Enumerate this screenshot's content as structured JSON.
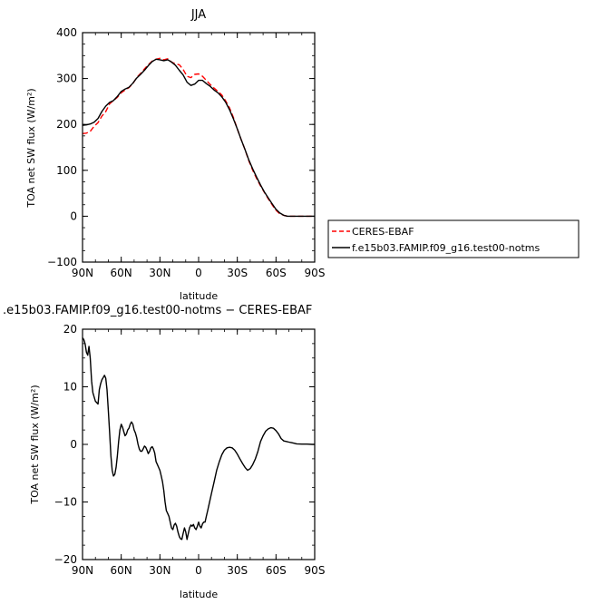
{
  "chart_data": [
    {
      "type": "line",
      "title": "JJA",
      "xlabel": "latitude",
      "ylabel": "TOA net SW flux (W/m²)",
      "x_ticks": [
        90,
        60,
        30,
        0,
        -30,
        -60,
        -90
      ],
      "x_tick_labels": [
        "90N",
        "60N",
        "30N",
        "0",
        "30S",
        "60S",
        "90S"
      ],
      "xlim": [
        90,
        -90
      ],
      "y_ticks": [
        -100,
        0,
        100,
        200,
        300,
        400
      ],
      "y_tick_labels": [
        "−100",
        "0",
        "100",
        "200",
        "300",
        "400"
      ],
      "ylim": [
        -100,
        400
      ],
      "legend_placement": "outside-right",
      "series": [
        {
          "name": "CERES-EBAF",
          "color": "#ff0000",
          "dash": "dashed",
          "x": [
            90,
            87,
            84,
            81,
            78,
            75,
            72,
            69,
            66,
            63,
            60,
            57,
            54,
            51,
            48,
            45,
            42,
            39,
            36,
            33,
            30,
            27,
            24,
            21,
            18,
            15,
            12,
            9,
            6,
            3,
            0,
            -3,
            -6,
            -9,
            -12,
            -15,
            -18,
            -21,
            -24,
            -27,
            -30,
            -33,
            -36,
            -39,
            -42,
            -45,
            -48,
            -51,
            -54,
            -57,
            -60,
            -63,
            -66,
            -69,
            -72,
            -75,
            -78,
            -81,
            -84,
            -87,
            -90
          ],
          "y": [
            180,
            181,
            185,
            196,
            204,
            218,
            228,
            245,
            252,
            259,
            269,
            275,
            280,
            289,
            302,
            311,
            321,
            330,
            338,
            342,
            344,
            341,
            343,
            336,
            332,
            330,
            320,
            305,
            302,
            309,
            310,
            305,
            296,
            287,
            279,
            272,
            264,
            251,
            236,
            215,
            190,
            167,
            145,
            120,
            100,
            82,
            66,
            52,
            38,
            25,
            13,
            5,
            2,
            0,
            0,
            0,
            0,
            0,
            0,
            0,
            0
          ]
        },
        {
          "name": "f.e15b03.FAMIP.f09_g16.test00-notms",
          "color": "#000000",
          "dash": "solid",
          "x": [
            90,
            87,
            84,
            81,
            78,
            75,
            72,
            69,
            66,
            63,
            60,
            57,
            54,
            51,
            48,
            45,
            42,
            39,
            36,
            33,
            30,
            27,
            24,
            21,
            18,
            15,
            12,
            9,
            6,
            3,
            0,
            -3,
            -6,
            -9,
            -12,
            -15,
            -18,
            -21,
            -24,
            -27,
            -30,
            -33,
            -36,
            -39,
            -42,
            -45,
            -48,
            -51,
            -54,
            -57,
            -60,
            -63,
            -66,
            -69,
            -72,
            -75,
            -78,
            -81,
            -84,
            -87,
            -90
          ],
          "y": [
            198,
            199,
            201,
            205,
            213,
            228,
            240,
            248,
            252,
            261,
            272,
            277,
            281,
            290,
            301,
            309,
            318,
            328,
            337,
            342,
            341,
            339,
            341,
            336,
            329,
            318,
            308,
            292,
            285,
            288,
            296,
            296,
            289,
            283,
            275,
            269,
            260,
            248,
            232,
            212,
            190,
            167,
            145,
            122,
            103,
            85,
            68,
            53,
            40,
            27,
            15,
            7,
            2,
            0,
            0,
            0,
            0,
            0,
            0,
            0,
            0
          ]
        }
      ]
    },
    {
      "type": "line",
      "title": ".e15b03.FAMIP.f09_g16.test00-notms − CERES-EBAF",
      "xlabel": "latitude",
      "ylabel": "TOA net SW flux (W/m²)",
      "x_ticks": [
        90,
        60,
        30,
        0,
        -30,
        -60,
        -90
      ],
      "x_tick_labels": [
        "90N",
        "60N",
        "30N",
        "0",
        "30S",
        "60S",
        "90S"
      ],
      "xlim": [
        90,
        -90
      ],
      "y_ticks": [
        -20,
        -10,
        0,
        10,
        20
      ],
      "y_tick_labels": [
        "−20",
        "−10",
        "0",
        "10",
        "20"
      ],
      "ylim": [
        -20,
        20
      ],
      "series": [
        {
          "name": "",
          "color": "#000000",
          "dash": "solid",
          "x": [
            90,
            89,
            88,
            87,
            86,
            85,
            84,
            83,
            82,
            80,
            78,
            77,
            76,
            75,
            74,
            73,
            72,
            71,
            70,
            69,
            68,
            67,
            66,
            65,
            64,
            63,
            62,
            61,
            60,
            59,
            58,
            57,
            56,
            55,
            54,
            53,
            52,
            51,
            50,
            49,
            48,
            47,
            46,
            45,
            44,
            43,
            42,
            41,
            40,
            39,
            38,
            37,
            36,
            35,
            34,
            33,
            32,
            31,
            30,
            29,
            28,
            27,
            26,
            25,
            24,
            23,
            22,
            21,
            20,
            19,
            18,
            17,
            16,
            15,
            14,
            13,
            12,
            11,
            10,
            9,
            8,
            7,
            6,
            5,
            4,
            3,
            2,
            1,
            0,
            -1,
            -2,
            -3,
            -4,
            -5,
            -6,
            -7,
            -8,
            -10,
            -12,
            -14,
            -16,
            -18,
            -20,
            -22,
            -24,
            -26,
            -28,
            -30,
            -32,
            -34,
            -36,
            -38,
            -40,
            -42,
            -44,
            -46,
            -48,
            -50,
            -52,
            -54,
            -56,
            -58,
            -60,
            -62,
            -64,
            -66,
            -68,
            -70,
            -72,
            -74,
            -76,
            -80,
            -84,
            -88,
            -90
          ],
          "y": [
            18.5,
            18.2,
            17.5,
            16,
            15.5,
            17,
            15,
            11,
            9,
            7.5,
            7,
            9.5,
            10.5,
            11.2,
            11.6,
            12,
            11.5,
            9.5,
            6,
            2,
            -2,
            -4.5,
            -5.5,
            -5.2,
            -4,
            -2,
            0.5,
            2.5,
            3.5,
            3,
            2.2,
            1.5,
            1.8,
            2.5,
            2.8,
            3.5,
            3.9,
            3.5,
            2.5,
            2,
            1.2,
            0,
            -0.8,
            -1.2,
            -1.2,
            -0.8,
            -0.3,
            -0.5,
            -1,
            -1.6,
            -1.2,
            -0.6,
            -0.4,
            -0.8,
            -1.5,
            -3,
            -3.5,
            -4,
            -4.5,
            -5.5,
            -6.5,
            -8,
            -10,
            -11.5,
            -12,
            -12.5,
            -13.5,
            -14.5,
            -14.8,
            -14,
            -13.7,
            -14.2,
            -15.2,
            -16,
            -16.4,
            -16.5,
            -15.5,
            -14.5,
            -15.2,
            -16.5,
            -15.5,
            -14.5,
            -14,
            -14.2,
            -13.9,
            -14.5,
            -14.8,
            -14.2,
            -13.5,
            -14.2,
            -14.5,
            -13.8,
            -13.5,
            -13.5,
            -12.5,
            -11.5,
            -10.5,
            -8.5,
            -6.5,
            -4.5,
            -3,
            -1.8,
            -1,
            -0.6,
            -0.5,
            -0.6,
            -1,
            -1.7,
            -2.5,
            -3.3,
            -4,
            -4.5,
            -4.2,
            -3.5,
            -2.5,
            -1.2,
            0.5,
            1.5,
            2.3,
            2.7,
            2.9,
            2.8,
            2.4,
            1.8,
            1,
            0.6,
            0.5,
            0.4,
            0.3,
            0.2,
            0.1,
            0.05,
            0.05,
            0,
            0
          ]
        }
      ]
    }
  ]
}
